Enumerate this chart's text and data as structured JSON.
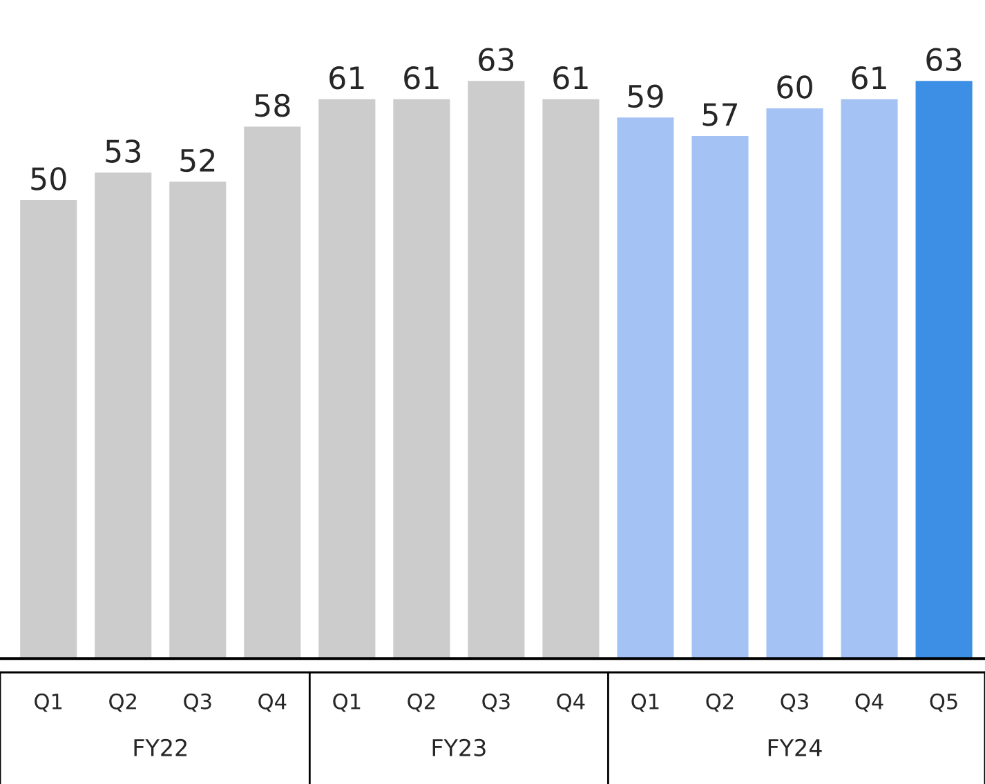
{
  "chart_data": {
    "type": "bar",
    "categories": [
      "Q1",
      "Q2",
      "Q3",
      "Q4",
      "Q1",
      "Q2",
      "Q3",
      "Q4",
      "Q1",
      "Q2",
      "Q3",
      "Q4",
      "Q5"
    ],
    "values": [
      50,
      53,
      52,
      58,
      61,
      61,
      63,
      61,
      59,
      57,
      60,
      61,
      63
    ],
    "colors": [
      "#cccccc",
      "#cccccc",
      "#cccccc",
      "#cccccc",
      "#cccccc",
      "#cccccc",
      "#cccccc",
      "#cccccc",
      "#a4c2f4",
      "#a4c2f4",
      "#a4c2f4",
      "#a4c2f4",
      "#3d8fe6"
    ],
    "annotations": [
      "FY22",
      "FY23",
      "FY24"
    ],
    "data_labels": true,
    "grid": false,
    "legend": false
  }
}
